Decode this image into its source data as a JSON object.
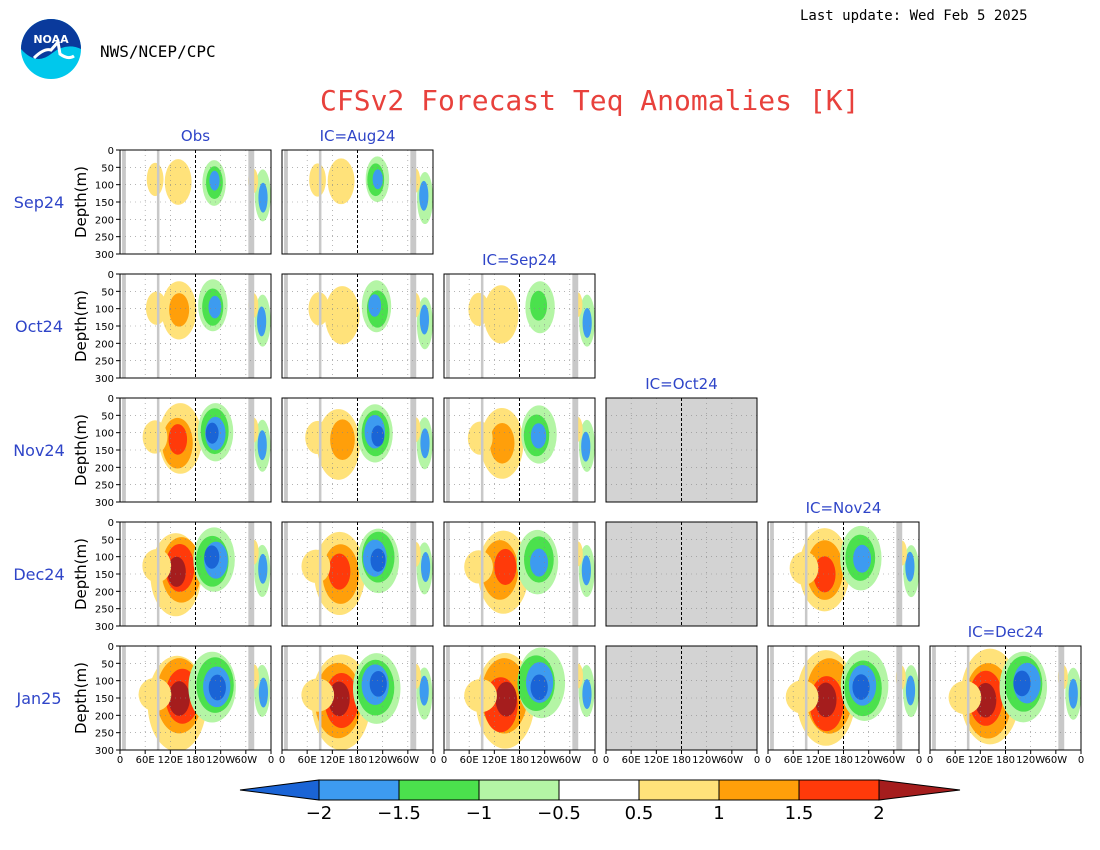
{
  "header": {
    "org": "NWS/NCEP/CPC",
    "last_update": "Last update: Wed Feb 5 2025",
    "logo_text": "NOAA"
  },
  "chart_data": {
    "type": "heatmap",
    "title": "CFSv2 Forecast Teq Anomalies [K]",
    "ylabel": "Depth(m)",
    "ylim": [
      300,
      0
    ],
    "y_ticks": [
      "0",
      "50",
      "100",
      "150",
      "200",
      "250",
      "300"
    ],
    "x_ticks": [
      "0",
      "60E",
      "120E",
      "180",
      "120W",
      "60W",
      "0"
    ],
    "column_labels": [
      "Obs",
      "IC=Aug24",
      "IC=Sep24",
      "IC=Oct24",
      "IC=Nov24",
      "IC=Dec24"
    ],
    "row_labels": [
      "Sep24",
      "Oct24",
      "Nov24",
      "Dec24",
      "Jan25"
    ],
    "missing_panels": [
      {
        "row": "Nov24",
        "column": "IC=Oct24"
      },
      {
        "row": "Dec24",
        "column": "IC=Oct24"
      },
      {
        "row": "Jan25",
        "column": "IC=Oct24"
      }
    ],
    "colorbar": {
      "ticks": [
        "−2",
        "−1.5",
        "−1",
        "−0.5",
        "0.5",
        "1",
        "1.5",
        "2"
      ],
      "bins": [
        {
          "range": "< -2",
          "color": "#1a64d6"
        },
        {
          "range": "-2 to -1.5",
          "color": "#3d9bf0"
        },
        {
          "range": "-1.5 to -1",
          "color": "#4be14d"
        },
        {
          "range": "-1 to -0.5",
          "color": "#b4f5a5"
        },
        {
          "range": "-0.5 to 0.5",
          "color": "#ffffff"
        },
        {
          "range": "0.5 to 1",
          "color": "#ffe27a"
        },
        {
          "range": "1 to 1.5",
          "color": "#ff9f0a"
        },
        {
          "range": "1.5 to 2",
          "color": "#ff3a0a"
        },
        {
          "range": "> 2",
          "color": "#a51d1d"
        }
      ]
    }
  },
  "colors": {
    "title": "#e8413c",
    "labels": "#2f45c8",
    "land_mask": "#c8c8c8",
    "missing": "#d3d3d3"
  }
}
